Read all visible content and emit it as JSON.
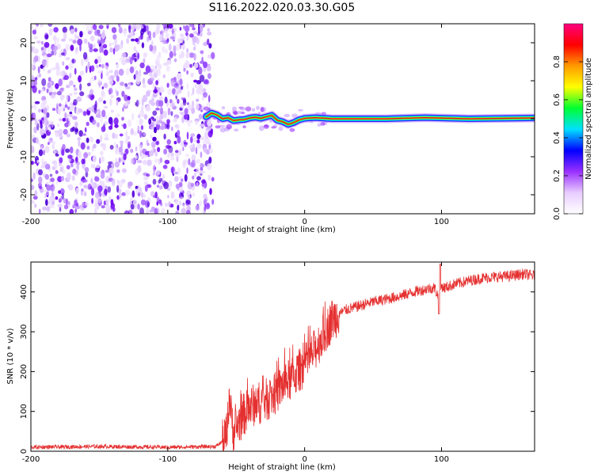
{
  "title": "S116.2022.020.03.30.G05",
  "colors": {
    "snr_line": "#e53030",
    "ridge_core": "#e0102a",
    "scatter_dark": "#6a00f0",
    "scatter_light": "#cfb0ff"
  },
  "chart_data": [
    {
      "type": "heatmap",
      "xlabel": "Height of straight line (km)",
      "ylabel": "Frequency (Hz)",
      "xlim": [
        -200,
        168
      ],
      "ylim": [
        -25,
        25
      ],
      "xticks": [
        -200,
        -100,
        0,
        100
      ],
      "yticks": [
        -20,
        -10,
        0,
        10,
        20
      ],
      "tick_labels_x": [
        "-200",
        "-100",
        "0",
        "100"
      ],
      "tick_labels_y": [
        "-20",
        "-10",
        "0",
        "10",
        "20"
      ],
      "noise_region_x": [
        -200,
        -67
      ],
      "ridge": {
        "x": [
          -72,
          -68,
          -64,
          -60,
          -56,
          -52,
          -48,
          -44,
          -40,
          -36,
          -32,
          -28,
          -24,
          -20,
          -16,
          -12,
          -8,
          -4,
          0,
          4,
          8,
          20,
          60,
          88,
          120,
          168
        ],
        "freq": [
          0.5,
          1.5,
          1.0,
          0.0,
          0.3,
          -0.5,
          -0.3,
          -0.2,
          0.2,
          0.4,
          0.1,
          0.5,
          0.9,
          -0.4,
          -0.8,
          -1.5,
          -1.0,
          -0.3,
          0.1,
          0.2,
          0.3,
          0.0,
          0.0,
          0.3,
          0.0,
          0.2
        ]
      }
    },
    {
      "type": "line",
      "xlabel": "Height of straight line (km)",
      "ylabel": "SNR (10 * v/v)",
      "xlim": [
        -200,
        168
      ],
      "ylim": [
        0,
        475
      ],
      "xticks": [
        -200,
        -100,
        0,
        100
      ],
      "yticks": [
        0,
        100,
        200,
        300,
        400
      ],
      "tick_labels_x": [
        "-200",
        "-100",
        "0",
        "100"
      ],
      "tick_labels_y": [
        "0",
        "100",
        "200",
        "300",
        "400"
      ],
      "series": [
        {
          "color": "#e53030",
          "x": [
            -200,
            -150,
            -100,
            -65,
            -58,
            -56,
            -55,
            -54,
            -52,
            -50,
            -45,
            -40,
            -35,
            -30,
            -25,
            -20,
            -15,
            -10,
            -5,
            0,
            5,
            10,
            15,
            20,
            25,
            30,
            40,
            50,
            60,
            70,
            80,
            90,
            95,
            98,
            100,
            102,
            110,
            120,
            130,
            140,
            150,
            160,
            168
          ],
          "y": [
            10,
            12,
            10,
            12,
            30,
            80,
            150,
            100,
            50,
            60,
            90,
            110,
            120,
            125,
            135,
            150,
            170,
            180,
            200,
            215,
            240,
            270,
            300,
            330,
            345,
            355,
            365,
            375,
            382,
            390,
            400,
            408,
            410,
            385,
            415,
            410,
            420,
            428,
            435,
            438,
            440,
            445,
            440
          ]
        }
      ]
    }
  ],
  "colorbar": {
    "label": "Normalized spectral amplitude",
    "range": [
      0,
      1
    ],
    "ticks": [
      0.0,
      0.2,
      0.4,
      0.6,
      0.8
    ],
    "tick_labels": [
      "0.0",
      "0.2",
      "0.4",
      "0.6",
      "0.8"
    ],
    "colors": [
      "#ffffff",
      "#e8ccff",
      "#9a30ff",
      "#0000ff",
      "#00e0ff",
      "#00ff30",
      "#ffff00",
      "#ff9a00",
      "#ff0000",
      "#ff0080"
    ]
  }
}
